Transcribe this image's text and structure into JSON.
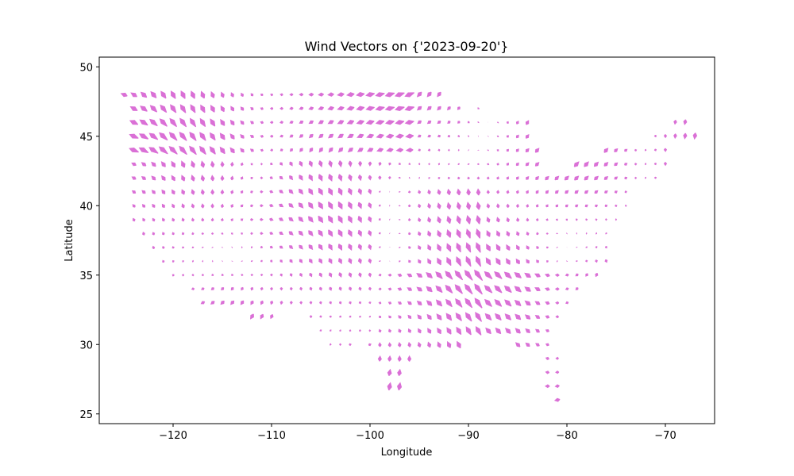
{
  "chart_data": {
    "type": "quiver",
    "title": "Wind Vectors  on {'2023-09-20'}",
    "xlabel": "Longitude",
    "ylabel": "Latitude",
    "xlim": [
      -127.5,
      -65.0
    ],
    "ylim": [
      24.3,
      50.7
    ],
    "xticks": [
      -120,
      -110,
      -100,
      -90,
      -80,
      -70
    ],
    "xtick_labels": [
      "−120",
      "−110",
      "−100",
      "−90",
      "−80",
      "−70"
    ],
    "yticks": [
      25,
      30,
      35,
      40,
      45,
      50
    ],
    "ytick_labels": [
      "25",
      "30",
      "35",
      "40",
      "45",
      "50"
    ],
    "grid": false,
    "arrow_color": "#da70d6",
    "grid_spacing_deg": 1,
    "rows": [
      {
        "lat": 48,
        "segments": [
          [
            -125,
            -93
          ]
        ]
      },
      {
        "lat": 47,
        "segments": [
          [
            -124,
            -91
          ],
          [
            -89,
            -89
          ]
        ]
      },
      {
        "lat": 46,
        "segments": [
          [
            -124,
            -84
          ],
          [
            -69,
            -68
          ]
        ]
      },
      {
        "lat": 45,
        "segments": [
          [
            -124,
            -84
          ],
          [
            -71,
            -67
          ]
        ]
      },
      {
        "lat": 44,
        "segments": [
          [
            -124,
            -83
          ],
          [
            -76,
            -70
          ]
        ]
      },
      {
        "lat": 43,
        "segments": [
          [
            -124,
            -83
          ],
          [
            -79,
            -70
          ]
        ]
      },
      {
        "lat": 42,
        "segments": [
          [
            -124,
            -80
          ],
          [
            -79,
            -71
          ]
        ]
      },
      {
        "lat": 41,
        "segments": [
          [
            -124,
            -74
          ]
        ]
      },
      {
        "lat": 40,
        "segments": [
          [
            -124,
            -74
          ]
        ]
      },
      {
        "lat": 39,
        "segments": [
          [
            -124,
            -75
          ]
        ]
      },
      {
        "lat": 38,
        "segments": [
          [
            -123,
            -76
          ]
        ]
      },
      {
        "lat": 37,
        "segments": [
          [
            -122,
            -76
          ]
        ]
      },
      {
        "lat": 36,
        "segments": [
          [
            -121,
            -76
          ]
        ]
      },
      {
        "lat": 35,
        "segments": [
          [
            -120,
            -77
          ]
        ]
      },
      {
        "lat": 34,
        "segments": [
          [
            -118,
            -79
          ]
        ]
      },
      {
        "lat": 33,
        "segments": [
          [
            -117,
            -80
          ]
        ]
      },
      {
        "lat": 32,
        "segments": [
          [
            -112,
            -110
          ],
          [
            -106,
            -81
          ]
        ]
      },
      {
        "lat": 31,
        "segments": [
          [
            -105,
            -82
          ]
        ]
      },
      {
        "lat": 30,
        "segments": [
          [
            -104,
            -102
          ],
          [
            -100,
            -91
          ],
          [
            -85,
            -82
          ]
        ]
      },
      {
        "lat": 29,
        "segments": [
          [
            -99,
            -96
          ],
          [
            -82,
            -81
          ]
        ]
      },
      {
        "lat": 28,
        "segments": [
          [
            -98,
            -97
          ],
          [
            -82,
            -81
          ]
        ]
      },
      {
        "lat": 27,
        "segments": [
          [
            -98,
            -97
          ],
          [
            -82,
            -81
          ]
        ]
      },
      {
        "lat": 26,
        "segments": [
          [
            -81,
            -81
          ]
        ]
      }
    ],
    "arrow_scale": 0.55
  }
}
